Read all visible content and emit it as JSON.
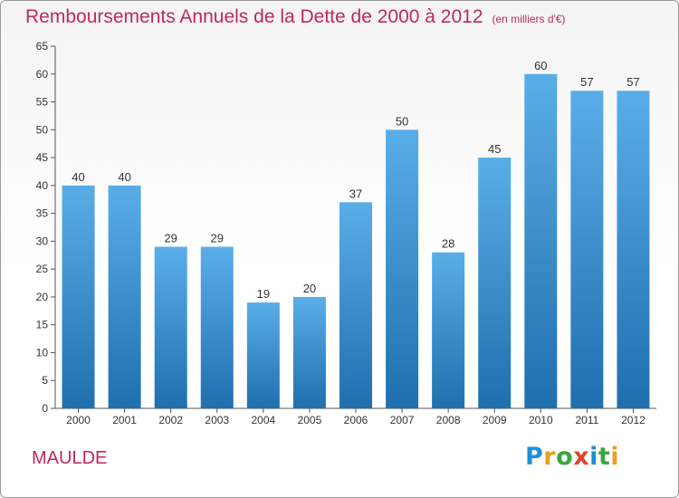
{
  "chart_data": {
    "type": "bar",
    "title": "Remboursements Annuels de la Dette de 2000 à 2012",
    "subtitle": "(en milliers d'€)",
    "categories": [
      "2000",
      "2001",
      "2002",
      "2003",
      "2004",
      "2005",
      "2006",
      "2007",
      "2008",
      "2009",
      "2010",
      "2011",
      "2012"
    ],
    "values": [
      40,
      40,
      29,
      29,
      19,
      20,
      37,
      50,
      28,
      45,
      60,
      57,
      57
    ],
    "ylim": [
      0,
      65
    ],
    "yticks": [
      0,
      5,
      10,
      15,
      20,
      25,
      30,
      35,
      40,
      45,
      50,
      55,
      60,
      65
    ],
    "grid": false,
    "bar_color_top": "#5aaee8",
    "bar_color_bottom": "#1f6fae"
  },
  "footer": {
    "city": "MAULDE",
    "logo_letters": [
      "P",
      "r",
      "o",
      "x",
      "i",
      "t",
      "i"
    ],
    "logo_colors": [
      "#1b8fd6",
      "#e8a21e",
      "#3aa63a",
      "#e0432c",
      "#1b8fd6",
      "#3aa63a",
      "#e8a21e"
    ]
  },
  "colors": {
    "title": "#c0285b",
    "axis": "#555555"
  }
}
